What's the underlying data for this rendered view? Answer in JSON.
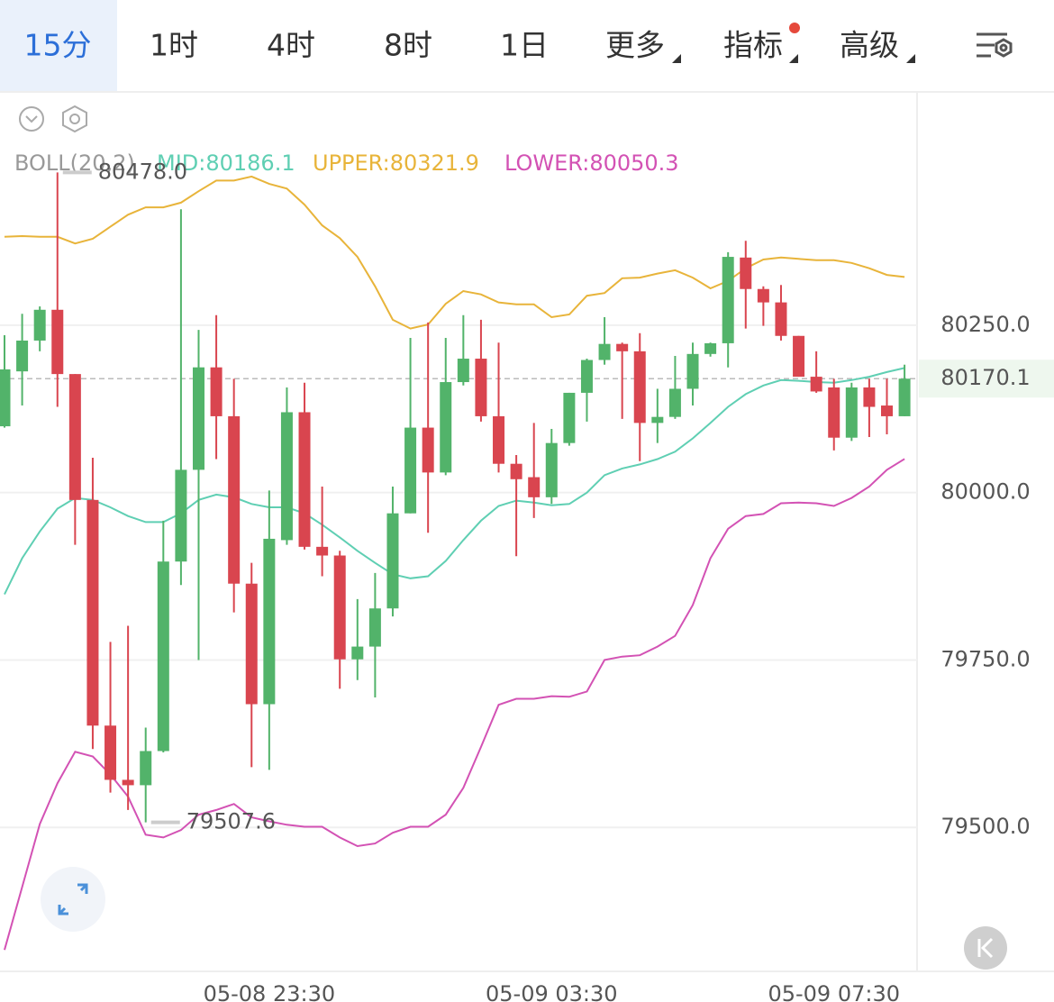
{
  "tabs": [
    "15分",
    "1时",
    "4时",
    "8时",
    "1日",
    "更多",
    "指标",
    "高级"
  ],
  "chart_data": {
    "type": "candlestick",
    "indicator": "BOLL(20,2)",
    "categories": [
      null,
      null,
      null,
      null,
      null,
      null,
      null,
      null,
      null,
      null,
      null,
      null,
      null,
      null,
      null,
      "05-08 23:30",
      null,
      null,
      null,
      null,
      null,
      null,
      null,
      null,
      null,
      null,
      null,
      null,
      null,
      null,
      null,
      "05-09 03:30",
      null,
      null,
      null,
      null,
      null,
      null,
      null,
      null,
      null,
      null,
      null,
      null,
      null,
      null,
      null,
      "05-09 07:30",
      null,
      null,
      null,
      null
    ],
    "open": [
      80099,
      80181,
      80227,
      80273,
      80177,
      79989,
      79652,
      79571,
      79563,
      79614,
      79897,
      80034,
      80187,
      80114,
      79864,
      79684,
      79929,
      80120,
      79919,
      79906,
      79751,
      79770,
      79827,
      79969,
      80097,
      80030,
      80165,
      80200,
      80114,
      80043,
      80023,
      79993,
      80074,
      80149,
      80198,
      80222,
      80211,
      80104,
      80113,
      80155,
      80207,
      80223,
      80351,
      80304,
      80284,
      80234,
      80173,
      80157,
      80082,
      80157,
      80130,
      80114
    ],
    "high": [
      80235,
      80267,
      80278,
      80478,
      80177,
      80052,
      79777,
      79801,
      79649,
      79958,
      80423,
      80243,
      80265,
      80170,
      79895,
      80003,
      80157,
      80164,
      80009,
      79913,
      79841,
      79880,
      80009,
      80231,
      80254,
      80231,
      80265,
      80258,
      80224,
      80056,
      80104,
      80095,
      80149,
      80200,
      80262,
      80224,
      80238,
      80155,
      80204,
      80224,
      80224,
      80359,
      80376,
      80308,
      80310,
      80234,
      80211,
      80170,
      80164,
      80170,
      80170,
      80191
    ],
    "low": [
      80097,
      80130,
      80211,
      80128,
      79922,
      79617,
      79552,
      79526,
      79507.6,
      79612,
      79862,
      79750,
      80050,
      79821,
      79590,
      79586,
      79922,
      79915,
      79875,
      79707,
      79720,
      79694,
      79815,
      79969,
      79940,
      80026,
      80160,
      80106,
      80030,
      79905,
      79962,
      79983,
      80070,
      80106,
      80191,
      80110,
      80047,
      80074,
      80110,
      80130,
      80203,
      80187,
      80245,
      80249,
      80227,
      80173,
      80149,
      80063,
      80077,
      80083,
      80087,
      80114
    ],
    "close": [
      80184,
      80227,
      80273,
      80177,
      79989,
      79652,
      79571,
      79563,
      79614,
      79897,
      80034,
      80187,
      80114,
      79864,
      79684,
      79931,
      80120,
      79919,
      79906,
      79751,
      79770,
      79827,
      79969,
      80097,
      80030,
      80165,
      80200,
      80114,
      80043,
      80020,
      79993,
      80074,
      80149,
      80198,
      80222,
      80211,
      80104,
      80113,
      80155,
      80207,
      80223,
      80352,
      80304,
      80284,
      80234,
      80173,
      80151,
      80082,
      80157,
      80128,
      80114,
      80170.1
    ],
    "up_color": "#52b36a",
    "down_color": "#d9454f",
    "series": [
      {
        "name": "MID:80186.1",
        "color": "#5fcfb3",
        "values": [
          79848,
          79902,
          79942,
          79976,
          79992,
          79989,
          79978,
          79965,
          79956,
          79956,
          79969,
          79989,
          79997,
          79993,
          79983,
          79978,
          79978,
          79969,
          79952,
          79933,
          79913,
          79895,
          79878,
          79872,
          79875,
          79898,
          79929,
          79958,
          79980,
          79988,
          79985,
          79981,
          79983,
          80000,
          80026,
          80036,
          80042,
          80050,
          80061,
          80081,
          80104,
          80128,
          80147,
          80160,
          80168,
          80167,
          80165,
          80164,
          80168,
          80173,
          80180,
          80186.1
        ]
      },
      {
        "name": "UPPER:80321.9",
        "color": "#e8b43a",
        "values": [
          80382,
          80383,
          80382,
          80382,
          80372,
          80379,
          80397,
          80415,
          80426,
          80426,
          80433,
          80450,
          80466,
          80466,
          80472,
          80461,
          80454,
          80430,
          80399,
          80380,
          80352,
          80308,
          80258,
          80245,
          80251,
          80282,
          80301,
          80296,
          80284,
          80281,
          80281,
          80262,
          80266,
          80294,
          80298,
          80320,
          80321,
          80327,
          80332,
          80321,
          80305,
          80316,
          80335,
          80348,
          80351,
          80349,
          80347,
          80347,
          80343,
          80335,
          80325,
          80321.9
        ]
      },
      {
        "name": "LOWER:80050.3",
        "color": "#d352b4",
        "values": [
          79317,
          79411,
          79505,
          79566,
          79613,
          79606,
          79579,
          79546,
          79489,
          79485,
          79496,
          79519,
          79526,
          79535,
          79515,
          79509,
          79504,
          79501,
          79501,
          79485,
          79472,
          79476,
          79492,
          79501,
          79501,
          79519,
          79559,
          79620,
          79683,
          79692,
          79692,
          79696,
          79695,
          79703,
          79750,
          79755,
          79757,
          79770,
          79786,
          79832,
          79902,
          79946,
          79965,
          79968,
          79984,
          79985,
          79984,
          79980,
          79992,
          80009,
          80034,
          80050.3
        ]
      }
    ],
    "annotations": [
      {
        "index": 3,
        "value": 80478,
        "label": "80478.0"
      },
      {
        "index": 8,
        "value": 79507.6,
        "label": "79507.6"
      }
    ],
    "last_price": 80170.1,
    "last_price_color": "#4caf62",
    "ylim": [
      79285,
      80597
    ],
    "yticks": [
      {
        "value": 79500,
        "label": "79500.0"
      },
      {
        "value": 79750,
        "label": "79750.0"
      },
      {
        "value": 80000,
        "label": "80000.0"
      },
      {
        "value": 80250,
        "label": "80250.0"
      }
    ],
    "grid": true
  }
}
